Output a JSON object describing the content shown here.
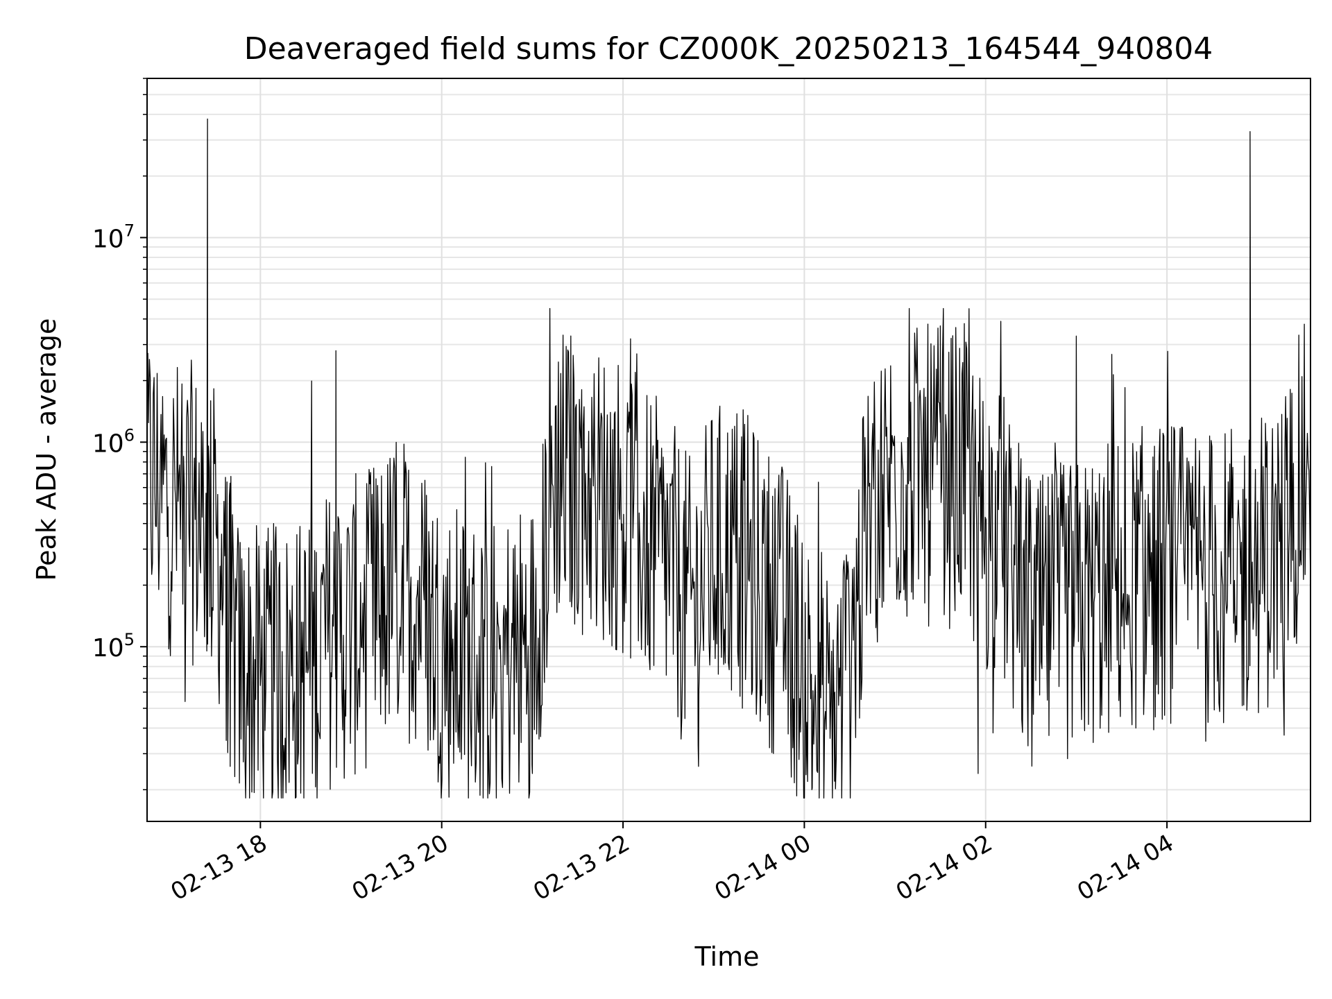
{
  "chart_data": {
    "type": "line",
    "title": "Deaveraged field sums for CZ000K_20250213_164544_940804",
    "xlabel": "Time",
    "ylabel": "Peak ADU - average",
    "y_scale": "log",
    "ylim": [
      14000,
      60000000
    ],
    "xlim": [
      "2025-02-13 16:45",
      "2025-02-14 05:35"
    ],
    "x_ticks": [
      {
        "t": "2025-02-13 18:00",
        "label": "02-13 18"
      },
      {
        "t": "2025-02-13 20:00",
        "label": "02-13 20"
      },
      {
        "t": "2025-02-13 22:00",
        "label": "02-13 22"
      },
      {
        "t": "2025-02-14 00:00",
        "label": "02-14 00"
      },
      {
        "t": "2025-02-14 02:00",
        "label": "02-14 02"
      },
      {
        "t": "2025-02-14 04:00",
        "label": "02-14 04"
      }
    ],
    "y_ticks": [
      {
        "v": 100000,
        "base": "10",
        "exp": "5"
      },
      {
        "v": 1000000,
        "base": "10",
        "exp": "6"
      },
      {
        "v": 10000000,
        "base": "10",
        "exp": "7"
      }
    ],
    "grid": true,
    "line_color": "#000000",
    "series": [
      {
        "x": [
          "2025-02-13 16:45",
          "2025-02-13 17:00",
          "2025-02-13 17:15",
          "2025-02-13 17:30",
          "2025-02-13 17:45",
          "2025-02-13 18:00",
          "2025-02-13 18:15",
          "2025-02-13 18:30",
          "2025-02-13 18:45",
          "2025-02-13 19:00",
          "2025-02-13 19:15",
          "2025-02-13 19:30",
          "2025-02-13 19:45",
          "2025-02-13 20:00",
          "2025-02-13 20:15",
          "2025-02-13 20:30",
          "2025-02-13 20:45",
          "2025-02-13 21:00",
          "2025-02-13 21:15",
          "2025-02-13 21:30",
          "2025-02-13 21:45",
          "2025-02-13 22:00",
          "2025-02-13 22:15",
          "2025-02-13 22:30",
          "2025-02-13 22:45",
          "2025-02-13 23:00",
          "2025-02-13 23:15",
          "2025-02-13 23:30",
          "2025-02-13 23:45",
          "2025-02-14 00:00",
          "2025-02-14 00:15",
          "2025-02-14 00:30",
          "2025-02-14 00:45",
          "2025-02-14 01:00",
          "2025-02-14 01:15",
          "2025-02-14 01:30",
          "2025-02-14 01:45",
          "2025-02-14 02:00",
          "2025-02-14 02:15",
          "2025-02-14 02:30",
          "2025-02-14 02:45",
          "2025-02-14 03:00",
          "2025-02-14 03:15",
          "2025-02-14 03:30",
          "2025-02-14 03:45",
          "2025-02-14 04:00",
          "2025-02-14 04:15",
          "2025-02-14 04:30",
          "2025-02-14 04:45",
          "2025-02-14 05:00",
          "2025-02-14 05:15",
          "2025-02-14 05:30"
        ],
        "y": [
          700000,
          500000,
          450000,
          350000,
          80000,
          70000,
          75000,
          80000,
          110000,
          120000,
          150000,
          200000,
          180000,
          100000,
          85000,
          80000,
          90000,
          100000,
          700000,
          650000,
          550000,
          500000,
          350000,
          250000,
          150000,
          280000,
          300000,
          200000,
          150000,
          80000,
          35000,
          90000,
          500000,
          700000,
          700000,
          650000,
          700000,
          400000,
          300000,
          110000,
          140000,
          150000,
          180000,
          200000,
          220000,
          230000,
          240000,
          220000,
          210000,
          250000,
          300000,
          700000
        ],
        "spikes": [
          {
            "x": "2025-02-13 17:25",
            "y": 38000000
          },
          {
            "x": "2025-02-13 18:50",
            "y": 2800000
          },
          {
            "x": "2025-02-13 22:05",
            "y": 3200000
          },
          {
            "x": "2025-02-14 01:30",
            "y": 3700000
          },
          {
            "x": "2025-02-14 03:00",
            "y": 3300000
          },
          {
            "x": "2025-02-14 04:55",
            "y": 33000000
          }
        ],
        "dips": [
          {
            "x": "2025-02-13 17:40",
            "y": 26000
          },
          {
            "x": "2025-02-13 21:00",
            "y": 24000
          },
          {
            "x": "2025-02-13 22:50",
            "y": 26000
          },
          {
            "x": "2025-02-14 00:05",
            "y": 20000
          },
          {
            "x": "2025-02-14 00:20",
            "y": 22000
          },
          {
            "x": "2025-02-14 01:55",
            "y": 24000
          }
        ]
      }
    ]
  }
}
